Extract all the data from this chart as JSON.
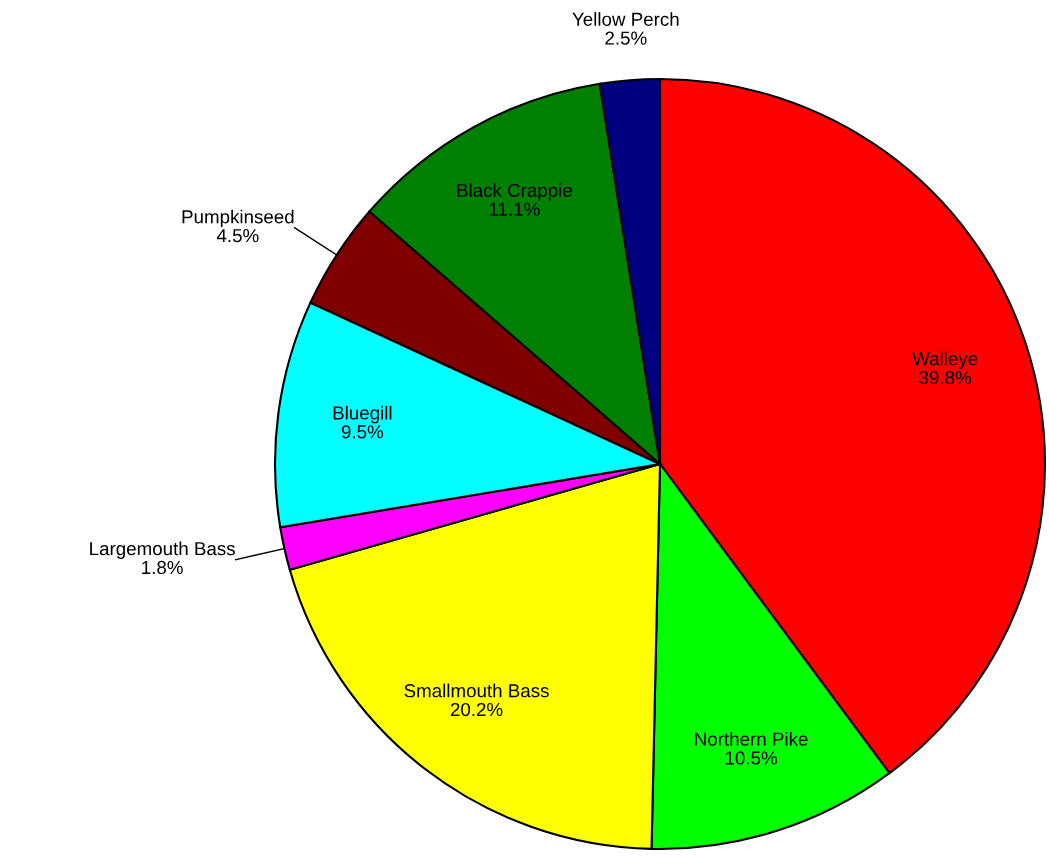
{
  "chart_data": {
    "type": "pie",
    "categories": [
      "Walleye",
      "Northern Pike",
      "Smallmouth Bass",
      "Largemouth Bass",
      "Bluegill",
      "Pumpkinseed",
      "Black Crappie",
      "Yellow Perch"
    ],
    "values": [
      39.8,
      10.5,
      20.2,
      1.8,
      9.5,
      4.5,
      11.1,
      2.5
    ],
    "colors": [
      "#ff0000",
      "#00ff00",
      "#ffff00",
      "#ff00ff",
      "#00ffff",
      "#800000",
      "#008000",
      "#000080"
    ],
    "value_labels": [
      "39.8%",
      "10.5%",
      "20.2%",
      "1.8%",
      "9.5%",
      "4.5%",
      "11.1%",
      "2.5%"
    ],
    "legend": false
  }
}
